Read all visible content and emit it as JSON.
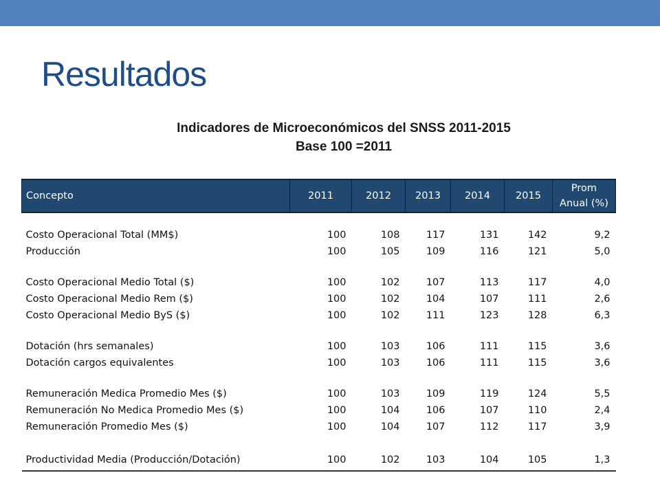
{
  "slide": {
    "title": "Resultados",
    "table_title_line1": "Indicadores de Microeconómicos del SNSS 2011-2015",
    "table_title_line2": "Base 100 =2011",
    "top_band_color": "#5081bd",
    "header_color": "#214970"
  },
  "table": {
    "headers": [
      "Concepto",
      "2011",
      "2012",
      "2013",
      "2014",
      "2015",
      "Prom",
      "Anual (%)"
    ],
    "rows": [
      {
        "concepto": "Costo Operacional Total (MM$)",
        "values": [
          "100",
          "108",
          "117",
          "131",
          "142",
          "9,2"
        ]
      },
      {
        "concepto": "Producción",
        "values": [
          "100",
          "105",
          "109",
          "116",
          "121",
          "5,0"
        ]
      },
      {
        "concepto": "Costo Operacional Medio Total ($)",
        "values": [
          "100",
          "102",
          "107",
          "113",
          "117",
          "4,0"
        ]
      },
      {
        "concepto": "Costo Operacional Medio Rem ($)",
        "values": [
          "100",
          "102",
          "104",
          "107",
          "111",
          "2,6"
        ]
      },
      {
        "concepto": "Costo Operacional Medio ByS ($)",
        "values": [
          "100",
          "102",
          "111",
          "123",
          "128",
          "6,3"
        ]
      },
      {
        "concepto": "Dotación (hrs semanales)",
        "values": [
          "100",
          "103",
          "106",
          "111",
          "115",
          "3,6"
        ]
      },
      {
        "concepto": "Dotación cargos equivalentes",
        "values": [
          "100",
          "103",
          "106",
          "111",
          "115",
          "3,6"
        ]
      },
      {
        "concepto": "Remuneración Medica Promedio Mes ($)",
        "values": [
          "100",
          "103",
          "109",
          "119",
          "124",
          "5,5"
        ]
      },
      {
        "concepto": "Remuneración No Medica Promedio Mes ($)",
        "values": [
          "100",
          "104",
          "106",
          "107",
          "110",
          "2,4"
        ]
      },
      {
        "concepto": "Remuneración Promedio Mes ($)",
        "values": [
          "100",
          "104",
          "107",
          "112",
          "117",
          "3,9"
        ]
      },
      {
        "concepto": "Productividad Media (Producción/Dotación)",
        "values": [
          "100",
          "102",
          "103",
          "104",
          "105",
          "1,3"
        ]
      }
    ]
  }
}
